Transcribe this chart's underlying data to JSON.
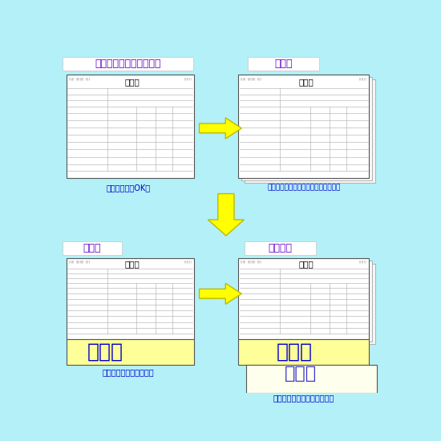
{
  "bg_color": "#b3f0f7",
  "text_color_purple": "#6600cc",
  "text_color_blue": "#0000cc",
  "arrow_color": "#ffff00",
  "arrow_edge": "#bbbb00",
  "title1": "一枚ずつ書式をプリント",
  "title2": "重ねる",
  "title3": "手書き",
  "title4": "下に複写",
  "caption1": "コピー機でもOK！",
  "caption2": "必要に応じてホッチキス等で止める。",
  "caption3": "ボールペンで書きます。",
  "caption4": "書いた文字が下に写ります。",
  "namae": "なまえ",
  "shinkokusho": "申込書"
}
